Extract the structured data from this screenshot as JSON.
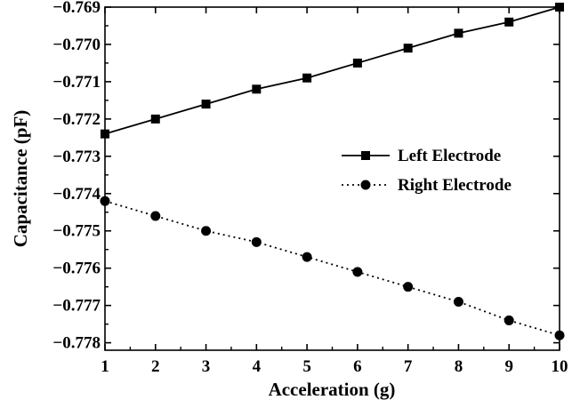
{
  "chart_data": {
    "type": "line",
    "xlabel": "Acceleration (g)",
    "ylabel": "Capacitance (pF)",
    "xlim": [
      1,
      10
    ],
    "ylim": [
      -0.7782,
      -0.769
    ],
    "x_ticks": [
      1,
      2,
      3,
      4,
      5,
      6,
      7,
      8,
      9,
      10
    ],
    "y_ticks": [
      -0.769,
      -0.77,
      -0.771,
      -0.772,
      -0.773,
      -0.774,
      -0.775,
      -0.776,
      -0.777,
      -0.778
    ],
    "grid": false,
    "legend_position": "center-right",
    "x": [
      1,
      2,
      3,
      4,
      5,
      6,
      7,
      8,
      9,
      10
    ],
    "series": [
      {
        "name": "Left Electrode",
        "marker": "square",
        "line_style": "solid",
        "color": "#000000",
        "values": [
          -0.7724,
          -0.772,
          -0.7716,
          -0.7712,
          -0.7709,
          -0.7705,
          -0.7701,
          -0.7697,
          -0.7694,
          -0.769
        ]
      },
      {
        "name": "Right Electrode",
        "marker": "circle",
        "line_style": "dotted",
        "color": "#000000",
        "values": [
          -0.7742,
          -0.7746,
          -0.775,
          -0.7753,
          -0.7757,
          -0.7761,
          -0.7765,
          -0.7769,
          -0.7774,
          -0.7778
        ]
      }
    ]
  }
}
